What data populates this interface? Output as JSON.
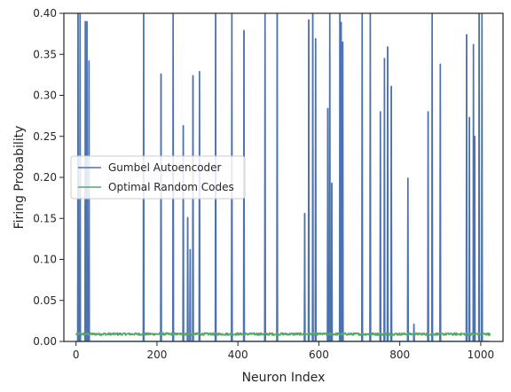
{
  "chart_data": {
    "type": "line",
    "title": "",
    "xlabel": "Neuron Index",
    "ylabel": "Firing Probability",
    "xlim": [
      -30,
      1055
    ],
    "ylim": [
      0,
      0.4
    ],
    "xticks": [
      0,
      200,
      400,
      600,
      800,
      1000
    ],
    "yticks": [
      0.0,
      0.05,
      0.1,
      0.15,
      0.2,
      0.25,
      0.3,
      0.35,
      0.4
    ],
    "grid": false,
    "legend_position": "center-left",
    "series": [
      {
        "name": "Gumbel Autoencoder",
        "color": "#4c72b0",
        "style": "spikes",
        "baseline": 0.0,
        "n_points": 1024,
        "spikes": [
          {
            "x": 5,
            "y": 0.4
          },
          {
            "x": 10,
            "y": 0.4
          },
          {
            "x": 23,
            "y": 0.39
          },
          {
            "x": 27,
            "y": 0.39
          },
          {
            "x": 32,
            "y": 0.342
          },
          {
            "x": 167,
            "y": 0.4
          },
          {
            "x": 210,
            "y": 0.326
          },
          {
            "x": 240,
            "y": 0.4
          },
          {
            "x": 265,
            "y": 0.263
          },
          {
            "x": 276,
            "y": 0.151
          },
          {
            "x": 282,
            "y": 0.112
          },
          {
            "x": 289,
            "y": 0.324
          },
          {
            "x": 305,
            "y": 0.329
          },
          {
            "x": 345,
            "y": 0.4
          },
          {
            "x": 385,
            "y": 0.4
          },
          {
            "x": 415,
            "y": 0.379
          },
          {
            "x": 467,
            "y": 0.4
          },
          {
            "x": 497,
            "y": 0.4
          },
          {
            "x": 565,
            "y": 0.156
          },
          {
            "x": 575,
            "y": 0.392
          },
          {
            "x": 585,
            "y": 0.4
          },
          {
            "x": 592,
            "y": 0.369
          },
          {
            "x": 622,
            "y": 0.284
          },
          {
            "x": 627,
            "y": 0.4
          },
          {
            "x": 632,
            "y": 0.193
          },
          {
            "x": 652,
            "y": 0.4
          },
          {
            "x": 655,
            "y": 0.389
          },
          {
            "x": 659,
            "y": 0.365
          },
          {
            "x": 707,
            "y": 0.4
          },
          {
            "x": 727,
            "y": 0.4
          },
          {
            "x": 752,
            "y": 0.28
          },
          {
            "x": 762,
            "y": 0.345
          },
          {
            "x": 770,
            "y": 0.359
          },
          {
            "x": 779,
            "y": 0.311
          },
          {
            "x": 820,
            "y": 0.199
          },
          {
            "x": 835,
            "y": 0.021
          },
          {
            "x": 870,
            "y": 0.28
          },
          {
            "x": 880,
            "y": 0.4
          },
          {
            "x": 900,
            "y": 0.338
          },
          {
            "x": 965,
            "y": 0.374
          },
          {
            "x": 972,
            "y": 0.273
          },
          {
            "x": 982,
            "y": 0.362
          },
          {
            "x": 985,
            "y": 0.25
          },
          {
            "x": 996,
            "y": 0.4
          },
          {
            "x": 1003,
            "y": 0.4
          }
        ]
      },
      {
        "name": "Optimal Random Codes",
        "color": "#55a868",
        "style": "line",
        "x_range": [
          0,
          1023
        ],
        "mean": 0.009,
        "noise": 0.0015
      }
    ]
  }
}
